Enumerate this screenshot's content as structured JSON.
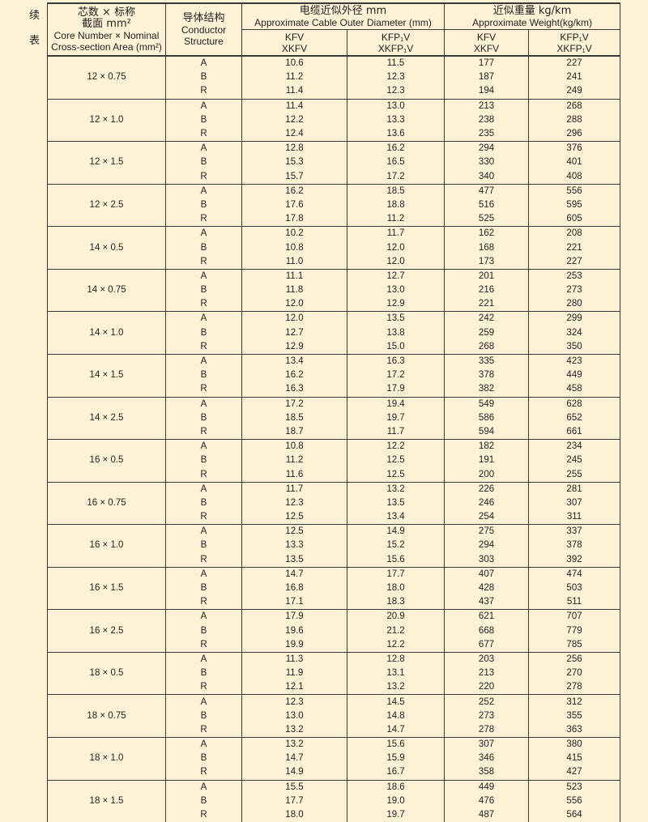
{
  "side_label": [
    "续",
    "表"
  ],
  "header": {
    "core_cn_1": "芯数 × 标称",
    "core_cn_2": "截面 mm²",
    "core_en_1": "Core Number × Nominal",
    "core_en_2": "Cross-section Area (mm²)",
    "conductor_cn": "导体结构",
    "conductor_en_1": "Conductor",
    "conductor_en_2": "Structure",
    "diameter_cn": "电缆近似外径 mm",
    "diameter_en": "Approximate Cable Outer Diameter (mm)",
    "weight_cn": "近似重量 kg/km",
    "weight_en": "Approximate Weight(kg/km)",
    "sub_a_1": "KFV",
    "sub_a_2": "XKFV",
    "sub_b_1": "KFP₁V",
    "sub_b_2": "XKFP₁V"
  },
  "groups": [
    {
      "spec": "12 × 0.75",
      "rows": [
        [
          "A",
          "10.6",
          "11.5",
          "177",
          "227"
        ],
        [
          "B",
          "11.2",
          "12.3",
          "187",
          "241"
        ],
        [
          "R",
          "11.4",
          "12.3",
          "194",
          "249"
        ]
      ]
    },
    {
      "spec": "12 × 1.0",
      "rows": [
        [
          "A",
          "11.4",
          "13.0",
          "213",
          "268"
        ],
        [
          "B",
          "12.2",
          "13.3",
          "238",
          "288"
        ],
        [
          "R",
          "12.4",
          "13.6",
          "235",
          "296"
        ]
      ]
    },
    {
      "spec": "12 × 1.5",
      "rows": [
        [
          "A",
          "12.8",
          "16.2",
          "294",
          "376"
        ],
        [
          "B",
          "15.3",
          "16.5",
          "330",
          "401"
        ],
        [
          "R",
          "15.7",
          "17.2",
          "340",
          "408"
        ]
      ]
    },
    {
      "spec": "12 × 2.5",
      "rows": [
        [
          "A",
          "16.2",
          "18.5",
          "477",
          "556"
        ],
        [
          "B",
          "17.6",
          "18.8",
          "516",
          "595"
        ],
        [
          "R",
          "17.8",
          "11.2",
          "525",
          "605"
        ]
      ]
    },
    {
      "spec": "14 × 0.5",
      "rows": [
        [
          "A",
          "10.2",
          "11.7",
          "162",
          "208"
        ],
        [
          "B",
          "10.8",
          "12.0",
          "168",
          "221"
        ],
        [
          "R",
          "11.0",
          "12.0",
          "173",
          "227"
        ]
      ]
    },
    {
      "spec": "14 × 0.75",
      "rows": [
        [
          "A",
          "11.1",
          "12.7",
          "201",
          "253"
        ],
        [
          "B",
          "11.8",
          "13.0",
          "216",
          "273"
        ],
        [
          "R",
          "12.0",
          "12.9",
          "221",
          "280"
        ]
      ]
    },
    {
      "spec": "14 × 1.0",
      "rows": [
        [
          "A",
          "12.0",
          "13.5",
          "242",
          "299"
        ],
        [
          "B",
          "12.7",
          "13.8",
          "259",
          "324"
        ],
        [
          "R",
          "12.9",
          "15.0",
          "268",
          "350"
        ]
      ]
    },
    {
      "spec": "14 × 1.5",
      "rows": [
        [
          "A",
          "13.4",
          "16.3",
          "335",
          "423"
        ],
        [
          "B",
          "16.2",
          "17.2",
          "378",
          "449"
        ],
        [
          "R",
          "16.3",
          "17.9",
          "382",
          "458"
        ]
      ]
    },
    {
      "spec": "14 × 2.5",
      "rows": [
        [
          "A",
          "17.2",
          "19.4",
          "549",
          "628"
        ],
        [
          "B",
          "18.5",
          "19.7",
          "586",
          "652"
        ],
        [
          "R",
          "18.7",
          "11.7",
          "594",
          "661"
        ]
      ]
    },
    {
      "spec": "16 × 0.5",
      "rows": [
        [
          "A",
          "10.8",
          "12.2",
          "182",
          "234"
        ],
        [
          "B",
          "11.2",
          "12.5",
          "191",
          "245"
        ],
        [
          "R",
          "11.6",
          "12.5",
          "200",
          "255"
        ]
      ]
    },
    {
      "spec": "16 × 0.75",
      "rows": [
        [
          "A",
          "11.7",
          "13.2",
          "226",
          "281"
        ],
        [
          "B",
          "12.3",
          "13.5",
          "246",
          "307"
        ],
        [
          "R",
          "12.5",
          "13.4",
          "254",
          "311"
        ]
      ]
    },
    {
      "spec": "16 × 1.0",
      "rows": [
        [
          "A",
          "12.5",
          "14.9",
          "275",
          "337"
        ],
        [
          "B",
          "13.3",
          "15.2",
          "294",
          "378"
        ],
        [
          "R",
          "13.5",
          "15.6",
          "303",
          "392"
        ]
      ]
    },
    {
      "spec": "16 × 1.5",
      "rows": [
        [
          "A",
          "14.7",
          "17.7",
          "407",
          "474"
        ],
        [
          "B",
          "16.8",
          "18.0",
          "428",
          "503"
        ],
        [
          "R",
          "17.1",
          "18.3",
          "437",
          "511"
        ]
      ]
    },
    {
      "spec": "16 × 2.5",
      "rows": [
        [
          "A",
          "17.9",
          "20.9",
          "621",
          "707"
        ],
        [
          "B",
          "19.6",
          "21.2",
          "668",
          "779"
        ],
        [
          "R",
          "19.9",
          "12.2",
          "677",
          "785"
        ]
      ]
    },
    {
      "spec": "18 × 0.5",
      "rows": [
        [
          "A",
          "11.3",
          "12.8",
          "203",
          "256"
        ],
        [
          "B",
          "11.9",
          "13.1",
          "213",
          "270"
        ],
        [
          "R",
          "12.1",
          "13.2",
          "220",
          "278"
        ]
      ]
    },
    {
      "spec": "18 × 0.75",
      "rows": [
        [
          "A",
          "12.3",
          "14.5",
          "252",
          "312"
        ],
        [
          "B",
          "13.0",
          "14.8",
          "273",
          "355"
        ],
        [
          "R",
          "13.2",
          "14.7",
          "278",
          "363"
        ]
      ]
    },
    {
      "spec": "18 × 1.0",
      "rows": [
        [
          "A",
          "13.2",
          "15.6",
          "307",
          "380"
        ],
        [
          "B",
          "14.7",
          "15.9",
          "346",
          "415"
        ],
        [
          "R",
          "14.9",
          "16.7",
          "358",
          "427"
        ]
      ]
    },
    {
      "spec": "18 × 1.5",
      "rows": [
        [
          "A",
          "15.5",
          "18.6",
          "449",
          "523"
        ],
        [
          "B",
          "17.7",
          "19.0",
          "476",
          "556"
        ],
        [
          "R",
          "18.0",
          "19.7",
          "487",
          "564"
        ]
      ]
    }
  ]
}
